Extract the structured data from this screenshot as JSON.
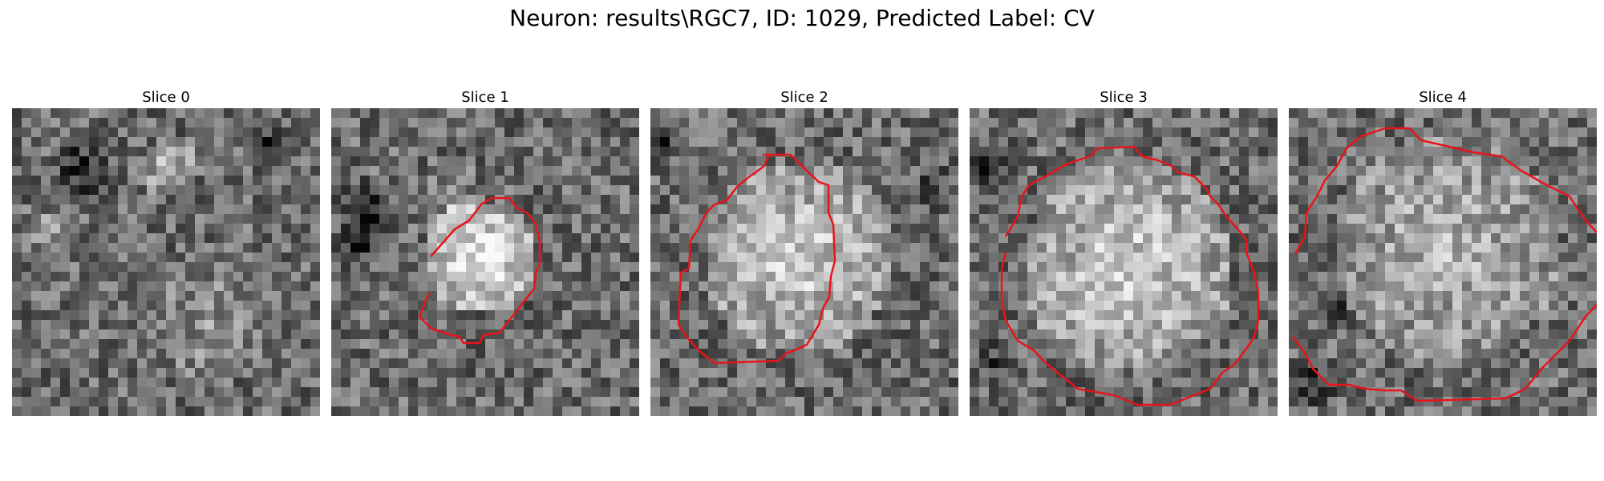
{
  "title": "Neuron: results\\RGC7, ID: 1029, Predicted Label: CV",
  "colors": {
    "contour": "#e8141a",
    "background": "#ffffff"
  },
  "panels": [
    {
      "title": "Slice 0",
      "has_contour": false
    },
    {
      "title": "Slice 1",
      "has_contour": true
    },
    {
      "title": "Slice 2",
      "has_contour": true
    },
    {
      "title": "Slice 3",
      "has_contour": true
    },
    {
      "title": "Slice 4",
      "has_contour": true
    }
  ]
}
